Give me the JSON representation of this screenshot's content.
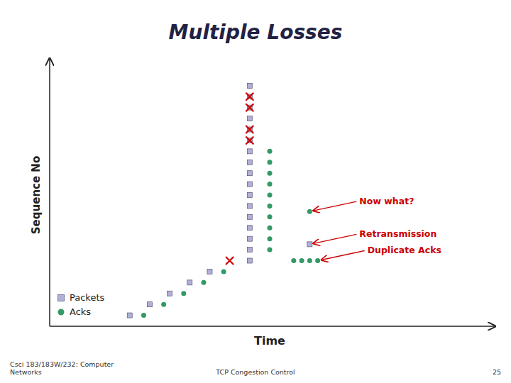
{
  "chart_data": {
    "type": "scatter",
    "title": "Multiple Losses",
    "xlabel": "Time",
    "ylabel": "Sequence No",
    "xlim": [
      0,
      11
    ],
    "ylim": [
      0,
      24
    ],
    "tick_labels": false,
    "grid": false,
    "legend": "lower left",
    "series": [
      {
        "name": "Packets",
        "color": "#b0b0d8",
        "marker": "square",
        "x": [
          2.0,
          2.5,
          3.0,
          3.5,
          4.0,
          5.0,
          5.0,
          5.0,
          5.0,
          5.0,
          5.0,
          5.0,
          5.0,
          5.0,
          5.0,
          5.0,
          5.0,
          5.0,
          5.0,
          5.0,
          5.0,
          5.0,
          6.5
        ],
        "values": [
          1,
          2,
          3,
          4,
          5,
          6,
          7,
          8,
          9,
          10,
          11,
          12,
          13,
          14,
          15,
          16,
          17,
          18,
          19,
          20,
          21,
          22,
          7.5
        ]
      },
      {
        "name": "Acks",
        "color": "#339966",
        "marker": "circle",
        "x": [
          2.35,
          2.85,
          3.35,
          3.85,
          4.35,
          5.5,
          5.5,
          5.5,
          5.5,
          5.5,
          5.5,
          5.5,
          5.5,
          5.5,
          5.5,
          6.1,
          6.3,
          6.5,
          6.7,
          6.5
        ],
        "values": [
          1,
          2,
          3,
          4,
          5,
          7,
          8,
          9,
          10,
          11,
          12,
          13,
          14,
          15,
          16,
          6,
          6,
          6,
          6,
          10.5
        ]
      },
      {
        "color": "#cc0000",
        "marker": "x",
        "x": [
          5.0,
          5.0,
          5.0,
          5.0,
          4.5
        ],
        "values": [
          20,
          21,
          17,
          18,
          6
        ]
      }
    ],
    "annotations": [
      {
        "text": "Now what?",
        "x": 6.5,
        "y": 10.5,
        "color": "#cc0000"
      },
      {
        "text": "Retransmission",
        "x": 6.5,
        "y": 7.5,
        "color": "#cc0000"
      },
      {
        "text": "Duplicate Acks",
        "x": 6.7,
        "y": 6.0,
        "color": "#cc0000"
      }
    ],
    "footer": [
      "Csci 183/183W/232: Computer\nNetworks",
      "TCP Congestion Control",
      "25"
    ]
  }
}
